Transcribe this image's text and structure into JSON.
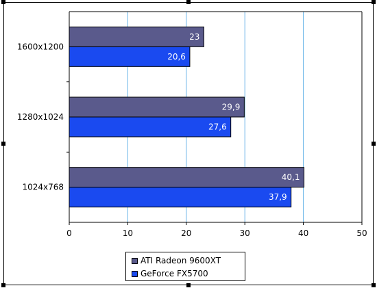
{
  "chart_data": {
    "type": "bar",
    "orientation": "horizontal",
    "categories": [
      "1600x1200",
      "1280x1024",
      "1024x768"
    ],
    "series": [
      {
        "name": "ATI Radeon 9600XT",
        "values": [
          23,
          29.9,
          40.1
        ],
        "labels": [
          "23",
          "29,9",
          "40,1"
        ],
        "color": "#5a5a8c"
      },
      {
        "name": "GeForce FX5700",
        "values": [
          20.6,
          27.6,
          37.9
        ],
        "labels": [
          "20,6",
          "27,6",
          "37,9"
        ],
        "color": "#1a4af0"
      }
    ],
    "xlim": [
      0,
      50
    ],
    "xticks": [
      0,
      10,
      20,
      30,
      40,
      50
    ],
    "grid": true,
    "grid_color": "#6ab4e8",
    "legend_position": "bottom"
  }
}
